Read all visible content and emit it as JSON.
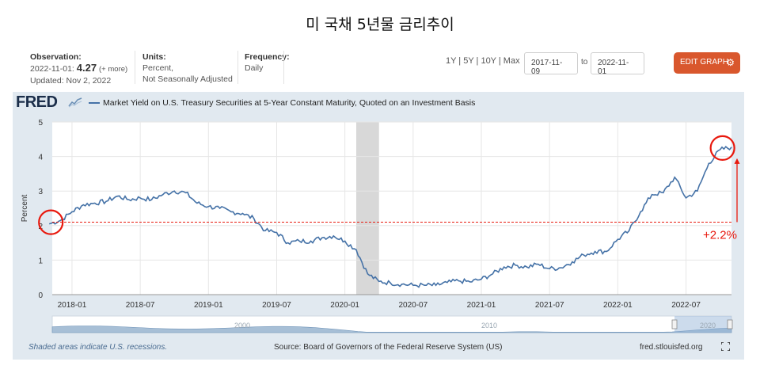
{
  "page_title": "미 국채 5년물 금리추이",
  "header": {
    "observation_label": "Observation:",
    "observation_date": "2022-11-01:",
    "observation_value": "4.27",
    "observation_more": "(+ more)",
    "updated": "Updated: Nov 2, 2022",
    "units_label": "Units:",
    "units_line1": "Percent,",
    "units_line2": "Not Seasonally Adjusted",
    "frequency_label": "Frequency:",
    "frequency_value": "Daily",
    "range_links": "1Y | 5Y | 10Y | Max",
    "date_from": "2017-11-09",
    "to_label": "to",
    "date_to": "2022-11-01",
    "edit_button": "EDIT GRAPH"
  },
  "icons": {
    "logo": "fred-logo-icon",
    "gear": "gear-icon",
    "fullscreen": "fullscreen-icon"
  },
  "colors": {
    "series": "#4572a7",
    "panel": "#e1e9f0",
    "recession": "#d8d8d8",
    "annotation": "#e8190e",
    "edit_button": "#d9572d"
  },
  "logo_text": "FRED",
  "footer": {
    "recession_note": "Shaded areas indicate U.S. recessions.",
    "source": "Source: Board of Governors of the Federal Reserve System (US)",
    "site": "fred.stlouisfed.org"
  },
  "navigator_labels": [
    "2000",
    "2010",
    "2020"
  ],
  "chart_data": {
    "type": "line",
    "title": "Market Yield on U.S. Treasury Securities at 5-Year Constant Maturity, Quoted on an Investment Basis",
    "xlabel": "",
    "ylabel": "Percent",
    "xlim": [
      "2017-11-09",
      "2022-11-01"
    ],
    "ylim": [
      0,
      5
    ],
    "x_tick_labels": [
      "2018-01",
      "2018-07",
      "2019-01",
      "2019-07",
      "2020-01",
      "2020-07",
      "2021-01",
      "2021-07",
      "2022-01",
      "2022-07"
    ],
    "y_ticks": [
      0,
      1,
      2,
      3,
      4,
      5
    ],
    "grid": true,
    "recession_shading": [
      "2020-02",
      "2020-04"
    ],
    "series": [
      {
        "name": "Market Yield on U.S. Treasury Securities at 5-Year Constant Maturity, Quoted on an Investment Basis",
        "x": [
          "2017-11",
          "2017-12",
          "2018-01",
          "2018-02",
          "2018-03",
          "2018-04",
          "2018-05",
          "2018-06",
          "2018-07",
          "2018-08",
          "2018-09",
          "2018-10",
          "2018-11",
          "2018-12",
          "2019-01",
          "2019-02",
          "2019-03",
          "2019-04",
          "2019-05",
          "2019-06",
          "2019-07",
          "2019-08",
          "2019-09",
          "2019-10",
          "2019-11",
          "2019-12",
          "2020-01",
          "2020-02",
          "2020-03",
          "2020-04",
          "2020-05",
          "2020-06",
          "2020-07",
          "2020-08",
          "2020-09",
          "2020-10",
          "2020-11",
          "2020-12",
          "2021-01",
          "2021-02",
          "2021-03",
          "2021-04",
          "2021-05",
          "2021-06",
          "2021-07",
          "2021-08",
          "2021-09",
          "2021-10",
          "2021-11",
          "2021-12",
          "2022-01",
          "2022-02",
          "2022-03",
          "2022-04",
          "2022-05",
          "2022-06",
          "2022-07",
          "2022-08",
          "2022-09",
          "2022-10",
          "2022-11"
        ],
        "values": [
          2.05,
          2.15,
          2.4,
          2.6,
          2.65,
          2.7,
          2.85,
          2.75,
          2.8,
          2.75,
          2.9,
          3.0,
          2.95,
          2.65,
          2.55,
          2.5,
          2.4,
          2.35,
          2.2,
          1.85,
          1.8,
          1.5,
          1.55,
          1.55,
          1.65,
          1.7,
          1.55,
          1.3,
          0.6,
          0.38,
          0.34,
          0.3,
          0.27,
          0.27,
          0.27,
          0.35,
          0.4,
          0.37,
          0.45,
          0.6,
          0.8,
          0.85,
          0.8,
          0.88,
          0.75,
          0.78,
          0.95,
          1.15,
          1.25,
          1.25,
          1.6,
          1.85,
          2.4,
          2.9,
          2.95,
          3.4,
          2.8,
          3.0,
          3.8,
          4.2,
          4.27
        ]
      }
    ],
    "annotations": [
      {
        "type": "circle",
        "x": "2017-11"
      },
      {
        "type": "circle",
        "x": "2022-10"
      },
      {
        "type": "reference_line",
        "y": 2.1
      },
      {
        "type": "text",
        "text": "+2.2%"
      }
    ]
  }
}
